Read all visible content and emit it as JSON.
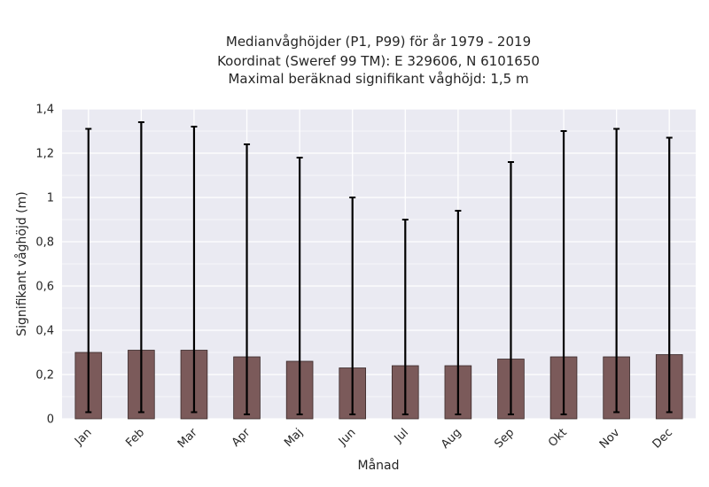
{
  "chart_data": {
    "type": "bar",
    "title_lines": [
      "Medianvåghöjder (P1, P99) för år 1979 - 2019",
      "Koordinat (Sweref 99 TM): E 329606, N 6101650",
      "Maximal beräknad signifikant våghöjd: 1,5 m"
    ],
    "xlabel": "Månad",
    "ylabel": "Signifikant våghöjd (m)",
    "categories": [
      "Jan",
      "Feb",
      "Mar",
      "Apr",
      "Maj",
      "Jun",
      "Jul",
      "Aug",
      "Sep",
      "Okt",
      "Nov",
      "Dec"
    ],
    "series": [
      {
        "values": [
          0.3,
          0.31,
          0.31,
          0.28,
          0.26,
          0.23,
          0.24,
          0.24,
          0.27,
          0.28,
          0.28,
          0.29
        ],
        "p1": [
          0.03,
          0.03,
          0.03,
          0.02,
          0.02,
          0.02,
          0.02,
          0.02,
          0.02,
          0.02,
          0.03,
          0.03
        ],
        "p99": [
          1.31,
          1.34,
          1.32,
          1.24,
          1.18,
          1.0,
          0.9,
          0.94,
          1.16,
          1.3,
          1.31,
          1.27
        ]
      }
    ],
    "ylim": [
      0,
      1.4
    ],
    "yticks": [
      0,
      0.2,
      0.4,
      0.6,
      0.8,
      1,
      1.2,
      1.4
    ],
    "ytick_labels": [
      "0",
      "0,2",
      "0,4",
      "0,6",
      "0,8",
      "1",
      "1,2",
      "1,4"
    ],
    "grid": true,
    "colors": {
      "bar": "#7b5a5a",
      "bar_edge": "#3a2a2a",
      "errorbar": "#000000",
      "plot_background": "#eaeaf2",
      "grid": "#ffffff"
    }
  }
}
